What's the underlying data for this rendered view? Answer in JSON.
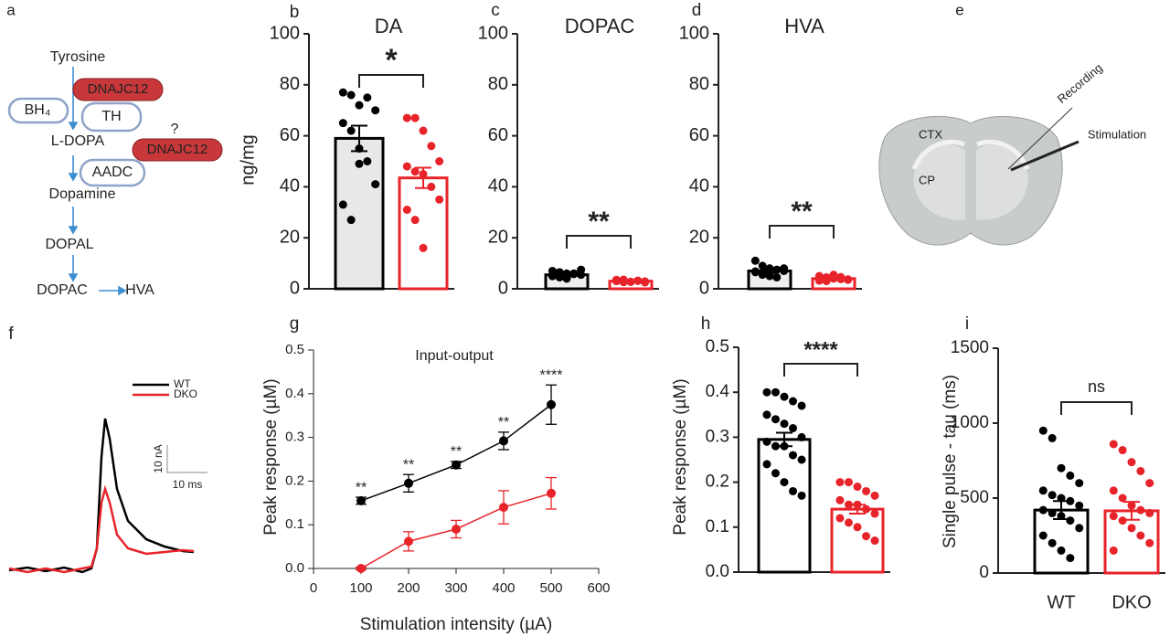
{
  "pathway": {
    "panel": "a",
    "nodes": [
      "Tyrosine",
      "DNAJC12",
      "BH₄",
      "TH",
      "L-DOPA",
      "?",
      "DNAJC12",
      "AADC",
      "Dopamine",
      "DOPAL",
      "DOPAC",
      "HVA"
    ]
  },
  "brain": {
    "panel": "e",
    "labels": [
      "CTX",
      "CP",
      "Recording",
      "Stimulation"
    ]
  },
  "trace": {
    "panel": "f",
    "legend": [
      "WT",
      "DKO"
    ],
    "colors": [
      "#000000",
      "#e8232a"
    ],
    "scale_y": "10 nA",
    "scale_x": "10 ms"
  },
  "chart_data": [
    {
      "type": "bar",
      "panel": "b",
      "title": "DA",
      "ylabel": "ng/mg",
      "categories": [
        null,
        null
      ],
      "values": [
        59,
        43.5
      ],
      "errors": [
        5,
        4
      ],
      "colors": [
        "#000000",
        "#e8232a"
      ],
      "fills": [
        "#e8e8e8",
        "#ffffff"
      ],
      "points": [
        [
          77,
          76,
          72,
          75,
          70,
          65,
          62,
          55,
          50,
          41,
          33,
          27,
          49
        ],
        [
          67,
          67,
          62,
          56,
          50,
          48,
          46,
          45,
          40,
          35,
          31,
          27,
          16
        ]
      ],
      "significance": "*",
      "ylim": [
        0,
        100
      ],
      "yticks": [
        0,
        20,
        40,
        60,
        80,
        100
      ]
    },
    {
      "type": "bar",
      "panel": "c",
      "title": "DOPAC",
      "categories": [
        null,
        null
      ],
      "values": [
        5.5,
        3
      ],
      "errors": [
        0.7,
        0.3
      ],
      "colors": [
        "#000000",
        "#e8232a"
      ],
      "fills": [
        "#eeeeee",
        "#ffffff"
      ],
      "points": [
        [
          7,
          6.5,
          6,
          5.8,
          5.5,
          5,
          4.5,
          4,
          6,
          7.5,
          5,
          4.8
        ],
        [
          3.5,
          3,
          2.8,
          3.2,
          2.5,
          3,
          3.6,
          2.7,
          3.1,
          2.9,
          3.3,
          2.6
        ]
      ],
      "significance": "**",
      "ylim": [
        0,
        100
      ],
      "yticks": [
        0,
        20,
        40,
        60,
        80,
        100
      ]
    },
    {
      "type": "bar",
      "panel": "d",
      "title": "HVA",
      "categories": [
        null,
        null
      ],
      "values": [
        7,
        4
      ],
      "errors": [
        0.8,
        0.4
      ],
      "colors": [
        "#000000",
        "#e8232a"
      ],
      "fills": [
        "#eeeeee",
        "#ffffff"
      ],
      "points": [
        [
          11,
          9,
          8,
          7.5,
          7,
          6.5,
          6,
          5,
          4.5,
          8,
          6.8,
          5.5
        ],
        [
          5,
          4.5,
          4,
          3.8,
          3.5,
          4.2,
          3,
          5.5,
          4.6,
          3.7,
          3.2,
          4.4
        ]
      ],
      "significance": "**",
      "ylim": [
        0,
        100
      ],
      "yticks": [
        0,
        20,
        40,
        60,
        80,
        100
      ]
    },
    {
      "type": "line",
      "panel": "g",
      "title": "Input-output",
      "xlabel": "Stimulation intensity (µA)",
      "ylabel": "Peak response (µM)",
      "x": [
        100,
        200,
        300,
        400,
        500
      ],
      "series": [
        {
          "color": "#000000",
          "values": [
            0.155,
            0.195,
            0.237,
            0.292,
            0.375
          ],
          "errors": [
            0.008,
            0.02,
            0.008,
            0.02,
            0.045
          ],
          "annotations": [
            "**",
            "**",
            "**",
            "**",
            "****"
          ]
        },
        {
          "color": "#e8232a",
          "values": [
            0,
            0.062,
            0.09,
            0.14,
            0.172
          ],
          "errors": [
            0.003,
            0.022,
            0.02,
            0.038,
            0.036
          ]
        }
      ],
      "xlim": [
        0,
        600
      ],
      "xticks": [
        0,
        100,
        200,
        300,
        400,
        500,
        600
      ],
      "ylim": [
        0,
        0.5
      ],
      "yticks": [
        {
          "value": 0,
          "label": "0.0"
        },
        0.1,
        0.2,
        0.3,
        0.4,
        0.5
      ]
    },
    {
      "type": "bar",
      "panel": "h",
      "ylabel": "Peak response (µM)",
      "categories": [
        null,
        null
      ],
      "values": [
        0.295,
        0.14
      ],
      "errors": [
        0.015,
        0.01
      ],
      "colors": [
        "#000000",
        "#e8232a"
      ],
      "fills": [
        "#ffffff",
        "#ffffff"
      ],
      "points": [
        [
          0.4,
          0.4,
          0.39,
          0.38,
          0.37,
          0.35,
          0.34,
          0.33,
          0.32,
          0.3,
          0.29,
          0.28,
          0.28,
          0.26,
          0.25,
          0.24,
          0.22,
          0.2,
          0.18,
          0.17
        ],
        [
          0.2,
          0.2,
          0.19,
          0.18,
          0.17,
          0.16,
          0.15,
          0.15,
          0.14,
          0.13,
          0.12,
          0.11,
          0.1,
          0.08,
          0.07
        ]
      ],
      "significance": "****",
      "ylim": [
        0,
        0.5
      ],
      "yticks": [
        {
          "value": 0,
          "label": "0.0"
        },
        0.1,
        0.2,
        0.3,
        0.4,
        0.5
      ]
    },
    {
      "type": "bar",
      "panel": "i",
      "ylabel": "Single pulse - tau (ms)",
      "categories": [
        "WT",
        "DKO"
      ],
      "values": [
        420,
        415
      ],
      "errors": [
        60,
        60
      ],
      "colors": [
        "#000000",
        "#e8232a"
      ],
      "fills": [
        "#ffffff",
        "#ffffff"
      ],
      "points": [
        [
          950,
          900,
          700,
          650,
          600,
          550,
          520,
          500,
          480,
          450,
          420,
          400,
          380,
          350,
          300,
          250,
          200,
          150,
          100
        ],
        [
          860,
          820,
          740,
          680,
          600,
          550,
          500,
          450,
          420,
          400,
          380,
          350,
          300,
          250,
          200,
          150
        ]
      ],
      "significance": "ns",
      "ylim": [
        0,
        1500
      ],
      "yticks": [
        0,
        500,
        1000,
        1500
      ]
    }
  ]
}
